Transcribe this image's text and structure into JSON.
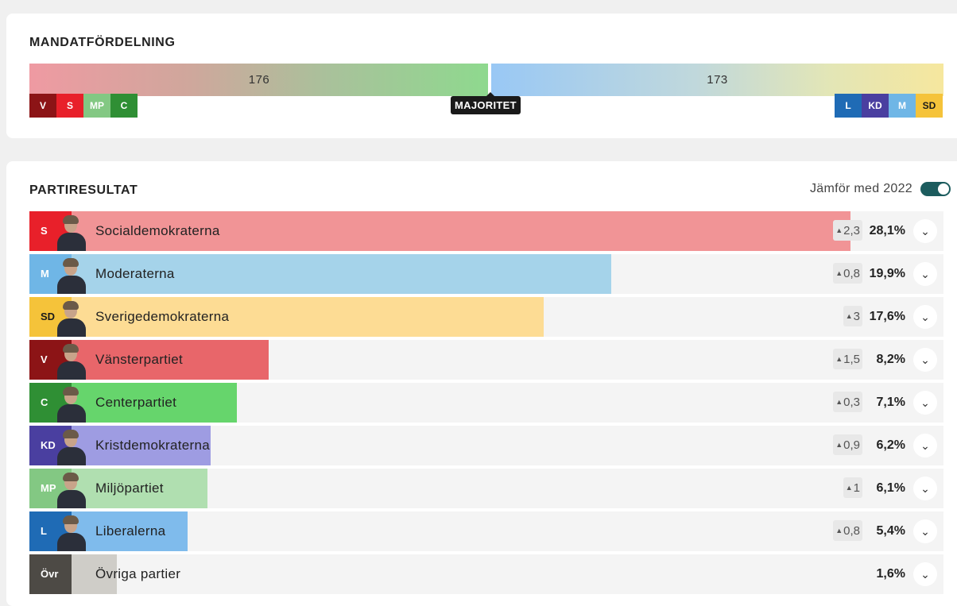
{
  "seat_distribution": {
    "title": "MANDATFÖRDELNING",
    "left_bloc_seats": "176",
    "right_bloc_seats": "173",
    "majority_label": "MAJORITET",
    "left_bloc": [
      {
        "abbr": "V",
        "color": "#8c1416"
      },
      {
        "abbr": "S",
        "color": "#e8202a"
      },
      {
        "abbr": "MP",
        "color": "#83c883"
      },
      {
        "abbr": "C",
        "color": "#2f8f34"
      }
    ],
    "right_bloc": [
      {
        "abbr": "L",
        "color": "#1f6bb5"
      },
      {
        "abbr": "KD",
        "color": "#4a3fa0"
      },
      {
        "abbr": "M",
        "color": "#6fb6e6"
      },
      {
        "abbr": "SD",
        "color": "#f5c33a"
      }
    ]
  },
  "party_results": {
    "title": "PARTIRESULTAT",
    "compare_label": "Jämför med 2022",
    "compare_enabled": true,
    "parties": [
      {
        "abbr": "S",
        "name": "Socialdemokraterna",
        "change": "2,3",
        "percent": "28,1%",
        "share": 28.1,
        "badge_color": "#e8202a",
        "bar_color": "#f19496"
      },
      {
        "abbr": "M",
        "name": "Moderaterna",
        "change": "0,8",
        "percent": "19,9%",
        "share": 19.9,
        "badge_color": "#6fb6e6",
        "bar_color": "#a5d3ea"
      },
      {
        "abbr": "SD",
        "name": "Sverigedemokraterna",
        "change": "3",
        "percent": "17,6%",
        "share": 17.6,
        "badge_color": "#f5c33a",
        "bar_color": "#fddc94"
      },
      {
        "abbr": "V",
        "name": "Vänsterpartiet",
        "change": "1,5",
        "percent": "8,2%",
        "share": 8.2,
        "badge_color": "#8c1416",
        "bar_color": "#e8666a"
      },
      {
        "abbr": "C",
        "name": "Centerpartiet",
        "change": "0,3",
        "percent": "7,1%",
        "share": 7.1,
        "badge_color": "#2f8f34",
        "bar_color": "#66d56c"
      },
      {
        "abbr": "KD",
        "name": "Kristdemokraterna",
        "change": "0,9",
        "percent": "6,2%",
        "share": 6.2,
        "badge_color": "#4a3fa0",
        "bar_color": "#9e9ce2"
      },
      {
        "abbr": "MP",
        "name": "Miljöpartiet",
        "change": "1",
        "percent": "6,1%",
        "share": 6.1,
        "badge_color": "#83c883",
        "bar_color": "#b0dfb0"
      },
      {
        "abbr": "L",
        "name": "Liberalerna",
        "change": "0,8",
        "percent": "5,4%",
        "share": 5.4,
        "badge_color": "#1f6bb5",
        "bar_color": "#7fbbec"
      },
      {
        "abbr": "Övr",
        "name": "Övriga partier",
        "change": "",
        "percent": "1,6%",
        "share": 1.6,
        "badge_color": "#4d4a45",
        "bar_color": "#cfcdc8"
      }
    ]
  }
}
